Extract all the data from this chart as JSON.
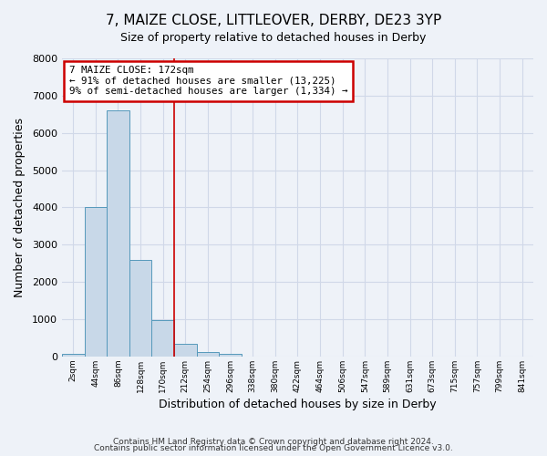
{
  "title": "7, MAIZE CLOSE, LITTLEOVER, DERBY, DE23 3YP",
  "subtitle": "Size of property relative to detached houses in Derby",
  "xlabel": "Distribution of detached houses by size in Derby",
  "ylabel": "Number of detached properties",
  "bar_color": "#c8d8e8",
  "bar_edge_color": "#5599bb",
  "grid_color": "#d0d8e8",
  "background_color": "#eef2f8",
  "bin_labels": [
    "2sqm",
    "44sqm",
    "86sqm",
    "128sqm",
    "170sqm",
    "212sqm",
    "254sqm",
    "296sqm",
    "338sqm",
    "380sqm",
    "422sqm",
    "464sqm",
    "506sqm",
    "547sqm",
    "589sqm",
    "631sqm",
    "673sqm",
    "715sqm",
    "757sqm",
    "799sqm",
    "841sqm"
  ],
  "bar_heights": [
    75,
    4000,
    6600,
    2600,
    975,
    330,
    130,
    75,
    0,
    0,
    0,
    0,
    0,
    0,
    0,
    0,
    0,
    0,
    0,
    0,
    0
  ],
  "ylim": [
    0,
    8000
  ],
  "yticks": [
    0,
    1000,
    2000,
    3000,
    4000,
    5000,
    6000,
    7000,
    8000
  ],
  "property_label": "7 MAIZE CLOSE: 172sqm",
  "annotation_line1": "← 91% of detached houses are smaller (13,225)",
  "annotation_line2": "9% of semi-detached houses are larger (1,334) →",
  "annotation_box_color": "#ffffff",
  "annotation_box_edge": "#cc0000",
  "property_line_color": "#cc0000",
  "property_line_x": 4.5,
  "footer1": "Contains HM Land Registry data © Crown copyright and database right 2024.",
  "footer2": "Contains public sector information licensed under the Open Government Licence v3.0."
}
